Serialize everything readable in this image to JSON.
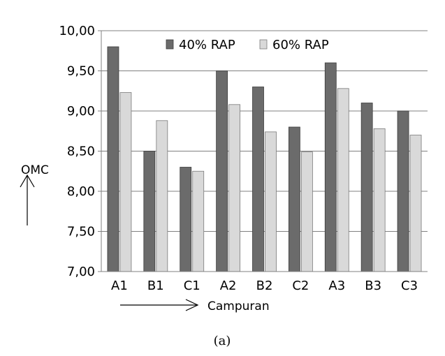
{
  "chart_data": {
    "type": "bar",
    "categories": [
      "A1",
      "B1",
      "C1",
      "A2",
      "B2",
      "C2",
      "A3",
      "B3",
      "C3"
    ],
    "series": [
      {
        "name": "40% RAP",
        "values": [
          9.8,
          8.5,
          8.3,
          9.5,
          9.3,
          8.8,
          9.6,
          9.1,
          9.0
        ],
        "color": "#6b6b6b"
      },
      {
        "name": "60% RAP",
        "values": [
          9.23,
          8.88,
          8.25,
          9.08,
          8.74,
          8.49,
          9.28,
          8.78,
          8.7
        ],
        "color": "#d9d9d9"
      }
    ],
    "ylim": [
      7.0,
      10.0
    ],
    "yticks": [
      "7,00",
      "7,50",
      "8,00",
      "8,50",
      "9,00",
      "9,50",
      "10,00"
    ],
    "ylabel": "OMC",
    "xlabel": "Campuran",
    "caption": "(a)",
    "grid": true,
    "legend_position": "top"
  }
}
